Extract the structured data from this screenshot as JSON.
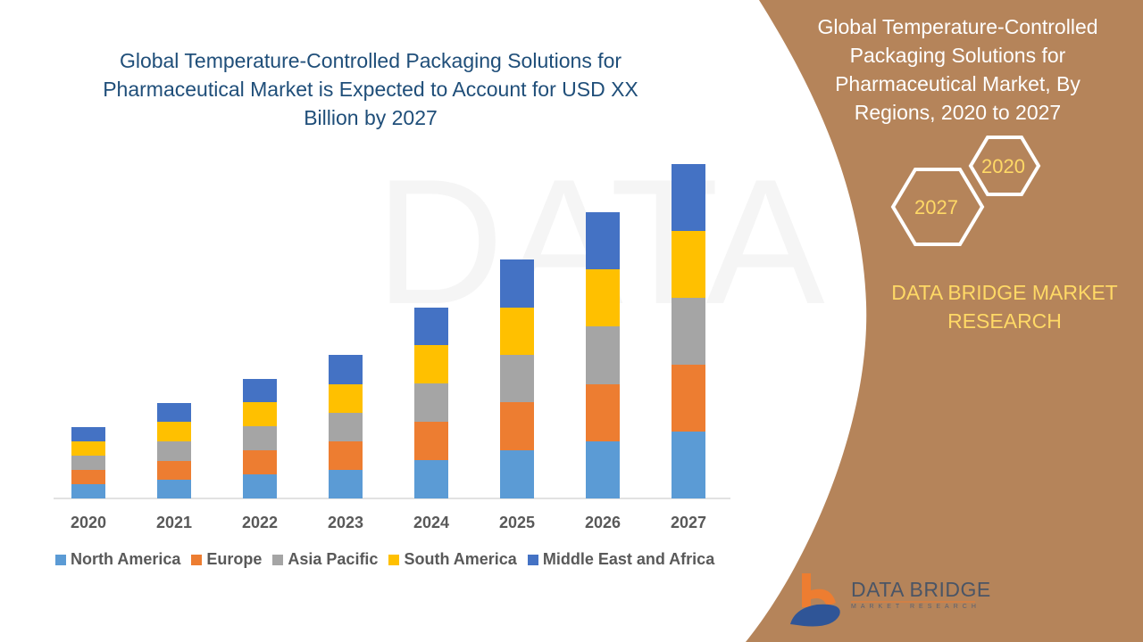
{
  "chart_data": {
    "type": "bar",
    "stacked": true,
    "title": "Global Temperature-Controlled Packaging Solutions for Pharmaceutical Market is Expected to Account for USD XX Billion by 2027",
    "xlabel": "",
    "ylabel": "",
    "ylim": [
      0,
      40
    ],
    "grid": false,
    "legend_position": "bottom",
    "categories": [
      "2020",
      "2021",
      "2022",
      "2023",
      "2024",
      "2025",
      "2026",
      "2027"
    ],
    "series": [
      {
        "name": "North America",
        "color": "#5B9BD5",
        "values": [
          1.6,
          2.1,
          2.7,
          3.2,
          4.3,
          5.4,
          6.4,
          7.5
        ]
      },
      {
        "name": "Europe",
        "color": "#ED7D31",
        "values": [
          1.6,
          2.1,
          2.7,
          3.2,
          4.3,
          5.4,
          6.4,
          7.5
        ]
      },
      {
        "name": "Asia Pacific",
        "color": "#A5A5A5",
        "values": [
          1.6,
          2.2,
          2.7,
          3.2,
          4.3,
          5.3,
          6.5,
          7.5
        ]
      },
      {
        "name": "South America",
        "color": "#FFC000",
        "values": [
          1.6,
          2.2,
          2.7,
          3.2,
          4.3,
          5.3,
          6.4,
          7.5
        ]
      },
      {
        "name": "Middle East and Africa",
        "color": "#4472C4",
        "values": [
          1.6,
          2.1,
          2.6,
          3.3,
          4.2,
          5.4,
          6.4,
          7.5
        ]
      }
    ]
  },
  "panel": {
    "title": "Global Temperature-Controlled Packaging Solutions for Pharmaceutical Market, By Regions, 2020 to 2027",
    "hex_2020": "2020",
    "hex_2027": "2027",
    "brand": "DATA BRIDGE MARKET RESEARCH",
    "bg_color": "#B5845A",
    "accent_color": "#FFD966"
  },
  "logo": {
    "name": "DATA BRIDGE",
    "sub": "MARKET RESEARCH"
  }
}
